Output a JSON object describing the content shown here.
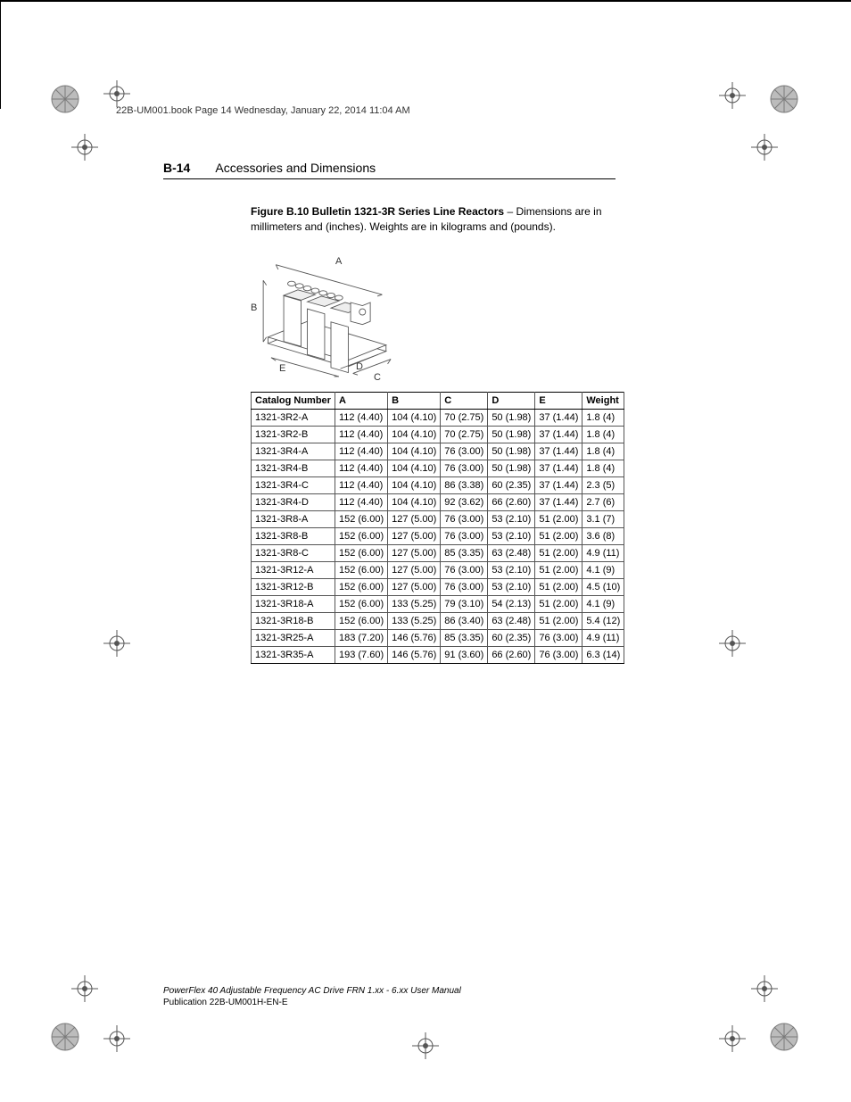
{
  "header_line": "22B-UM001.book  Page 14  Wednesday, January 22, 2014  11:04 AM",
  "page_number": "B-14",
  "section_title": "Accessories and Dimensions",
  "figure": {
    "label": "Figure B.10   Bulletin 1321-3R Series Line Reactors",
    "caption_tail": " – Dimensions are in millimeters and (inches). Weights are in kilograms and (pounds).",
    "dim_labels": {
      "A": "A",
      "B": "B",
      "C": "C",
      "D": "D",
      "E": "E"
    }
  },
  "table": {
    "columns": [
      "Catalog Number",
      "A",
      "B",
      "C",
      "D",
      "E",
      "Weight"
    ],
    "rows": [
      [
        "1321-3R2-A",
        "112 (4.40)",
        "104 (4.10)",
        "70 (2.75)",
        "50 (1.98)",
        "37 (1.44)",
        "1.8 (4)"
      ],
      [
        "1321-3R2-B",
        "112 (4.40)",
        "104 (4.10)",
        "70 (2.75)",
        "50 (1.98)",
        "37 (1.44)",
        "1.8 (4)"
      ],
      [
        "1321-3R4-A",
        "112 (4.40)",
        "104 (4.10)",
        "76 (3.00)",
        "50 (1.98)",
        "37 (1.44)",
        "1.8 (4)"
      ],
      [
        "1321-3R4-B",
        "112 (4.40)",
        "104 (4.10)",
        "76 (3.00)",
        "50 (1.98)",
        "37 (1.44)",
        "1.8 (4)"
      ],
      [
        "1321-3R4-C",
        "112 (4.40)",
        "104 (4.10)",
        "86 (3.38)",
        "60 (2.35)",
        "37 (1.44)",
        "2.3 (5)"
      ],
      [
        "1321-3R4-D",
        "112 (4.40)",
        "104 (4.10)",
        "92 (3.62)",
        "66 (2.60)",
        "37 (1.44)",
        "2.7 (6)"
      ],
      [
        "1321-3R8-A",
        "152 (6.00)",
        "127 (5.00)",
        "76 (3.00)",
        "53 (2.10)",
        "51 (2.00)",
        "3.1 (7)"
      ],
      [
        "1321-3R8-B",
        "152 (6.00)",
        "127 (5.00)",
        "76 (3.00)",
        "53 (2.10)",
        "51 (2.00)",
        "3.6 (8)"
      ],
      [
        "1321-3R8-C",
        "152 (6.00)",
        "127 (5.00)",
        "85 (3.35)",
        "63 (2.48)",
        "51 (2.00)",
        "4.9 (11)"
      ],
      [
        "1321-3R12-A",
        "152 (6.00)",
        "127 (5.00)",
        "76 (3.00)",
        "53 (2.10)",
        "51 (2.00)",
        "4.1 (9)"
      ],
      [
        "1321-3R12-B",
        "152 (6.00)",
        "127 (5.00)",
        "76 (3.00)",
        "53 (2.10)",
        "51 (2.00)",
        "4.5 (10)"
      ],
      [
        "1321-3R18-A",
        "152 (6.00)",
        "133 (5.25)",
        "79 (3.10)",
        "54 (2.13)",
        "51 (2.00)",
        "4.1 (9)"
      ],
      [
        "1321-3R18-B",
        "152 (6.00)",
        "133 (5.25)",
        "86 (3.40)",
        "63 (2.48)",
        "51 (2.00)",
        "5.4 (12)"
      ],
      [
        "1321-3R25-A",
        "183 (7.20)",
        "146 (5.76)",
        "85 (3.35)",
        "60 (2.35)",
        "76 (3.00)",
        "4.9 (11)"
      ],
      [
        "1321-3R35-A",
        "193 (7.60)",
        "146 (5.76)",
        "91 (3.60)",
        "66 (2.60)",
        "76 (3.00)",
        "6.3 (14)"
      ]
    ],
    "header_bg": "#ffffff",
    "border_color": "#555555",
    "fontsize": 11
  },
  "footer": {
    "line1": "PowerFlex 40 Adjustable Frequency AC Drive FRN 1.xx - 6.xx User Manual",
    "line2": "Publication 22B-UM001H-EN-E"
  },
  "colors": {
    "text": "#000000",
    "rule": "#000000",
    "regmark": "#555555",
    "rosette_fill": "#bcbcbc",
    "rosette_stroke": "#7a7a7a"
  }
}
